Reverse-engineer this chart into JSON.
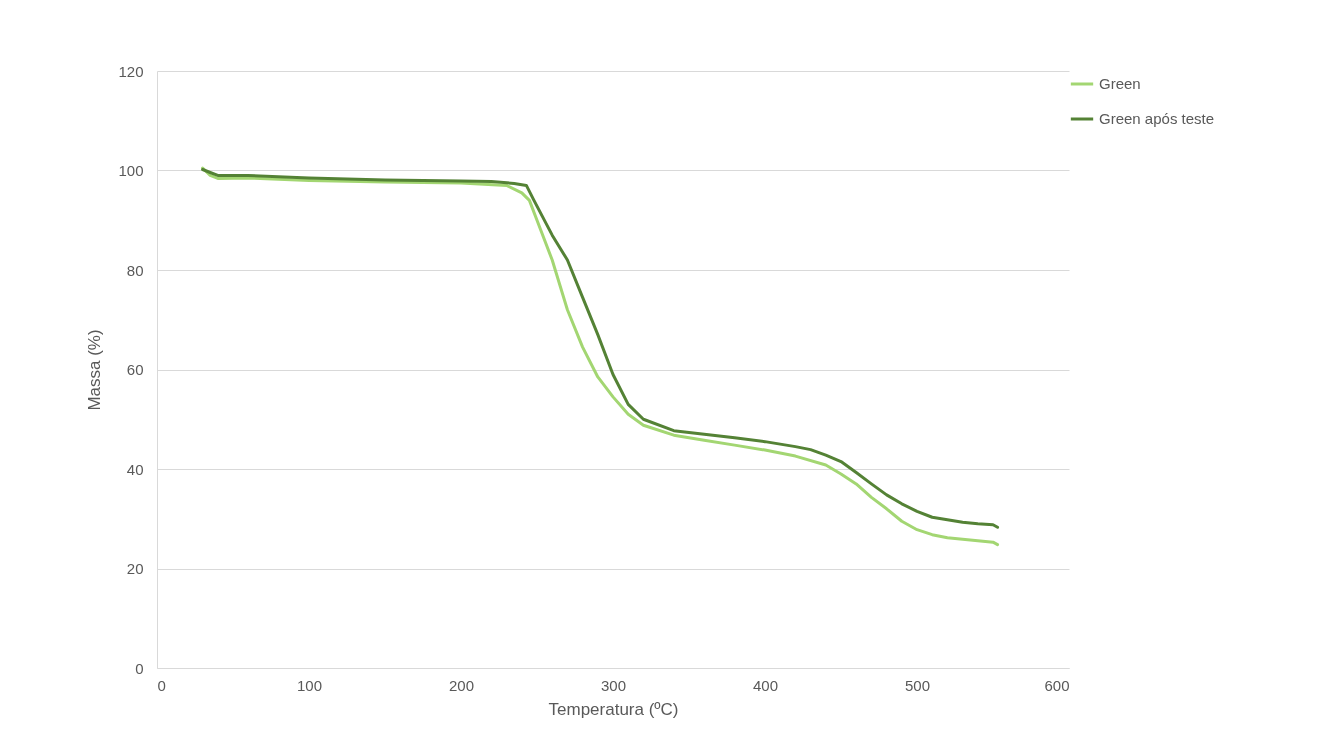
{
  "chart_data": {
    "type": "line",
    "xlabel": "Temperatura (ºC)",
    "ylabel": "Massa (%)",
    "xlim": [
      0,
      600
    ],
    "xticks": [
      0,
      100,
      200,
      300,
      400,
      500,
      600
    ],
    "ylim": [
      0,
      120
    ],
    "yticks": [
      0,
      20,
      40,
      60,
      80,
      100,
      120
    ],
    "grid": "y",
    "legend": "right",
    "marker": "none",
    "line_style": "solid",
    "series": [
      {
        "name": "Green",
        "color": "#a3d672",
        "x": [
          30,
          35,
          40,
          60,
          100,
          150,
          200,
          230,
          240,
          245,
          250,
          260,
          270,
          280,
          290,
          300,
          310,
          320,
          340,
          360,
          380,
          400,
          420,
          440,
          450,
          460,
          470,
          480,
          490,
          500,
          510,
          520,
          540,
          550,
          553
        ],
        "values": [
          100.5,
          99,
          98.4,
          98.5,
          98,
          97.7,
          97.5,
          97,
          95.5,
          94,
          90,
          82,
          72,
          64.5,
          58.5,
          54.5,
          51,
          48.8,
          46.8,
          45.8,
          44.8,
          43.8,
          42.6,
          40.8,
          39,
          37,
          34.3,
          32,
          29.5,
          27.8,
          26.8,
          26.2,
          25.6,
          25.3,
          24.8
        ]
      },
      {
        "name": "Green após teste",
        "color": "#548235",
        "x": [
          30,
          35,
          40,
          60,
          100,
          150,
          200,
          220,
          235,
          243,
          248,
          260,
          270,
          280,
          290,
          300,
          310,
          320,
          340,
          360,
          380,
          400,
          420,
          430,
          440,
          450,
          460,
          470,
          480,
          490,
          500,
          510,
          520,
          530,
          540,
          550,
          553
        ],
        "values": [
          100.2,
          99.6,
          99,
          99,
          98.5,
          98.1,
          97.9,
          97.8,
          97.4,
          97,
          94,
          87,
          82,
          74.5,
          67,
          59,
          53,
          50,
          47.7,
          47,
          46.3,
          45.5,
          44.5,
          43.9,
          42.8,
          41.5,
          39.3,
          37,
          34.8,
          33,
          31.5,
          30.3,
          29.8,
          29.3,
          29,
          28.8,
          28.3
        ]
      }
    ]
  }
}
